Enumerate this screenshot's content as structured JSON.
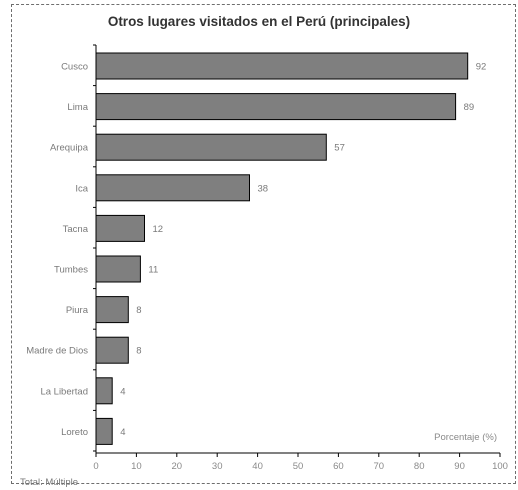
{
  "chart_data": {
    "type": "bar",
    "orientation": "horizontal",
    "title": "Otros lugares visitados en el Perú (principales)",
    "xlabel": "Porcentaje (%)",
    "ylabel": "",
    "xlim": [
      0,
      100
    ],
    "xticks": [
      0,
      10,
      20,
      30,
      40,
      50,
      60,
      70,
      80,
      90,
      100
    ],
    "categories": [
      "Cusco",
      "Lima",
      "Arequipa",
      "Ica",
      "Tacna",
      "Tumbes",
      "Piura",
      "Madre de Dios",
      "La Libertad",
      "Loreto"
    ],
    "values": [
      92,
      89,
      57,
      38,
      12,
      11,
      8,
      8,
      4,
      4
    ],
    "bar_color": "#7f7f7f",
    "bar_border_color": "#000000",
    "grid": false,
    "legend": "none"
  },
  "footnote": "Total: Múltiple"
}
